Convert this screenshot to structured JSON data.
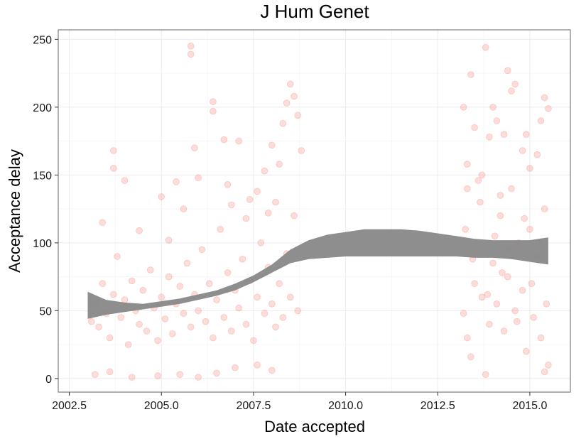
{
  "chart_data": {
    "type": "scatter",
    "title": "J Hum Genet",
    "xlabel": "Date accepted",
    "ylabel": "Acceptance delay",
    "xlim": [
      2002.2,
      2016.1
    ],
    "ylim": [
      -10,
      257
    ],
    "x_ticks": [
      2002.5,
      2005.0,
      2007.5,
      2010.0,
      2012.5,
      2015.0
    ],
    "x_tick_labels": [
      "2002.5",
      "2005.0",
      "2007.5",
      "2010.0",
      "2012.5",
      "2015.0"
    ],
    "y_ticks": [
      0,
      50,
      100,
      150,
      200,
      250
    ],
    "y_tick_labels": [
      "0",
      "50",
      "100",
      "150",
      "200",
      "250"
    ],
    "grid": true,
    "legend": "none",
    "point_color": "#f8766d",
    "point_opacity": 0.25,
    "band_color": "#888888",
    "smooth_band": {
      "x": [
        2003.0,
        2003.5,
        2004.0,
        2004.5,
        2005.0,
        2005.5,
        2006.0,
        2006.5,
        2007.0,
        2007.5,
        2008.0,
        2008.5,
        2009.0,
        2009.5,
        2010.0,
        2010.5,
        2011.0,
        2011.5,
        2012.0,
        2012.5,
        2013.0,
        2013.5,
        2014.0,
        2014.5,
        2015.0,
        2015.5
      ],
      "lower": [
        44,
        47,
        49,
        51,
        53,
        55,
        58,
        61,
        65,
        71,
        78,
        85,
        88,
        89,
        90,
        90,
        90,
        90,
        90,
        90,
        90,
        89,
        89,
        88,
        86,
        84
      ],
      "upper": [
        64,
        58,
        56,
        55,
        57,
        59,
        62,
        65,
        70,
        76,
        84,
        95,
        102,
        106,
        108,
        110,
        110,
        110,
        109,
        107,
        105,
        103,
        102,
        102,
        102,
        104
      ]
    },
    "cluster_1": {
      "x_range": [
        2003.0,
        2008.9
      ],
      "points": [
        [
          2003.1,
          42
        ],
        [
          2003.2,
          55
        ],
        [
          2003.3,
          38
        ],
        [
          2003.4,
          70
        ],
        [
          2003.5,
          48
        ],
        [
          2003.6,
          30
        ],
        [
          2003.7,
          62
        ],
        [
          2003.8,
          90
        ],
        [
          2003.9,
          45
        ],
        [
          2004.0,
          58
        ],
        [
          2004.1,
          25
        ],
        [
          2004.2,
          72
        ],
        [
          2004.3,
          50
        ],
        [
          2004.4,
          40
        ],
        [
          2004.5,
          65
        ],
        [
          2004.6,
          35
        ],
        [
          2004.7,
          80
        ],
        [
          2004.8,
          52
        ],
        [
          2004.9,
          28
        ],
        [
          2005.0,
          60
        ],
        [
          2005.1,
          44
        ],
        [
          2005.2,
          75
        ],
        [
          2005.3,
          33
        ],
        [
          2005.4,
          55
        ],
        [
          2005.5,
          68
        ],
        [
          2005.6,
          48
        ],
        [
          2005.7,
          85
        ],
        [
          2005.8,
          38
        ],
        [
          2005.9,
          62
        ],
        [
          2006.0,
          50
        ],
        [
          2006.1,
          95
        ],
        [
          2006.2,
          42
        ],
        [
          2006.3,
          70
        ],
        [
          2006.4,
          30
        ],
        [
          2006.5,
          58
        ],
        [
          2006.6,
          110
        ],
        [
          2006.7,
          45
        ],
        [
          2006.8,
          78
        ],
        [
          2006.9,
          35
        ],
        [
          2007.0,
          65
        ],
        [
          2007.1,
          52
        ],
        [
          2007.2,
          88
        ],
        [
          2007.3,
          40
        ],
        [
          2007.4,
          72
        ],
        [
          2007.5,
          28
        ],
        [
          2007.6,
          60
        ],
        [
          2007.7,
          100
        ],
        [
          2007.8,
          48
        ],
        [
          2007.9,
          82
        ],
        [
          2008.0,
          55
        ],
        [
          2008.1,
          38
        ],
        [
          2008.2,
          70
        ],
        [
          2008.3,
          45
        ],
        [
          2008.4,
          92
        ],
        [
          2008.5,
          60
        ],
        [
          2008.6,
          120
        ],
        [
          2008.7,
          50
        ],
        [
          2003.7,
          168
        ],
        [
          2003.7,
          155
        ],
        [
          2004.0,
          146
        ],
        [
          2005.0,
          134
        ],
        [
          2005.4,
          145
        ],
        [
          2005.8,
          245
        ],
        [
          2005.8,
          239
        ],
        [
          2005.9,
          170
        ],
        [
          2006.0,
          148
        ],
        [
          2006.4,
          204
        ],
        [
          2006.4,
          197
        ],
        [
          2006.7,
          176
        ],
        [
          2006.8,
          143
        ],
        [
          2007.1,
          175
        ],
        [
          2007.4,
          132
        ],
        [
          2007.6,
          138
        ],
        [
          2007.8,
          153
        ],
        [
          2008.0,
          172
        ],
        [
          2008.2,
          158
        ],
        [
          2008.3,
          188
        ],
        [
          2008.4,
          203
        ],
        [
          2008.5,
          217
        ],
        [
          2008.6,
          208
        ],
        [
          2008.7,
          194
        ],
        [
          2008.8,
          168
        ],
        [
          2008.1,
          130
        ],
        [
          2007.9,
          122
        ],
        [
          2003.2,
          3
        ],
        [
          2003.6,
          5
        ],
        [
          2004.2,
          1
        ],
        [
          2004.9,
          2
        ],
        [
          2005.5,
          3
        ],
        [
          2006.0,
          1
        ],
        [
          2006.5,
          4
        ],
        [
          2007.0,
          8
        ],
        [
          2007.6,
          10
        ],
        [
          2008.0,
          6
        ],
        [
          2003.4,
          115
        ],
        [
          2004.4,
          109
        ],
        [
          2005.2,
          102
        ],
        [
          2005.6,
          125
        ],
        [
          2006.9,
          128
        ],
        [
          2007.3,
          118
        ]
      ]
    },
    "cluster_2": {
      "x_range": [
        2013.1,
        2015.5
      ],
      "points": [
        [
          2013.2,
          200
        ],
        [
          2013.3,
          158
        ],
        [
          2013.4,
          224
        ],
        [
          2013.5,
          185
        ],
        [
          2013.6,
          146
        ],
        [
          2013.8,
          244
        ],
        [
          2013.9,
          178
        ],
        [
          2014.0,
          200
        ],
        [
          2014.1,
          190
        ],
        [
          2014.3,
          180
        ],
        [
          2014.4,
          227
        ],
        [
          2014.5,
          212
        ],
        [
          2014.6,
          217
        ],
        [
          2014.8,
          168
        ],
        [
          2014.9,
          180
        ],
        [
          2015.0,
          155
        ],
        [
          2015.2,
          165
        ],
        [
          2015.3,
          190
        ],
        [
          2015.4,
          207
        ],
        [
          2015.5,
          199
        ],
        [
          2013.2,
          48
        ],
        [
          2013.3,
          30
        ],
        [
          2013.4,
          16
        ],
        [
          2013.5,
          70
        ],
        [
          2013.6,
          95
        ],
        [
          2013.7,
          60
        ],
        [
          2013.8,
          3
        ],
        [
          2013.9,
          40
        ],
        [
          2014.0,
          85
        ],
        [
          2014.1,
          55
        ],
        [
          2014.2,
          120
        ],
        [
          2014.3,
          35
        ],
        [
          2014.4,
          75
        ],
        [
          2014.5,
          140
        ],
        [
          2014.6,
          50
        ],
        [
          2014.7,
          100
        ],
        [
          2014.8,
          65
        ],
        [
          2014.9,
          20
        ],
        [
          2015.0,
          110
        ],
        [
          2015.1,
          45
        ],
        [
          2015.2,
          90
        ],
        [
          2015.3,
          30
        ],
        [
          2015.4,
          125
        ],
        [
          2015.5,
          10
        ],
        [
          2013.25,
          110
        ],
        [
          2013.45,
          88
        ],
        [
          2013.65,
          130
        ],
        [
          2013.85,
          62
        ],
        [
          2014.05,
          105
        ],
        [
          2014.25,
          78
        ],
        [
          2014.45,
          95
        ],
        [
          2014.65,
          42
        ],
        [
          2014.85,
          118
        ],
        [
          2015.05,
          70
        ],
        [
          2015.25,
          100
        ],
        [
          2015.45,
          55
        ],
        [
          2013.3,
          140
        ],
        [
          2013.7,
          150
        ],
        [
          2014.2,
          135
        ],
        [
          2015.4,
          5
        ]
      ]
    }
  }
}
